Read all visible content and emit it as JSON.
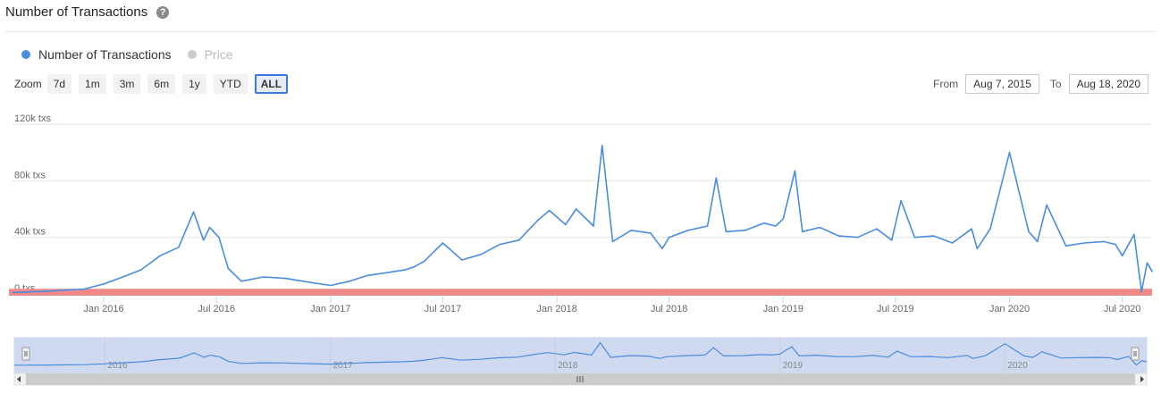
{
  "header": {
    "title": "Number of Transactions",
    "help_icon": "question-circle-icon",
    "help_glyph": "?"
  },
  "legend": [
    {
      "label": "Number of Transactions",
      "color": "#4a8de0",
      "active": true
    },
    {
      "label": "Price",
      "color": "#cccccc",
      "active": false
    }
  ],
  "zoom": {
    "label": "Zoom",
    "buttons": [
      "7d",
      "1m",
      "3m",
      "6m",
      "1y",
      "YTD",
      "ALL"
    ],
    "active": "ALL"
  },
  "range": {
    "from_label": "From",
    "from_value": "Aug 7, 2015",
    "to_label": "To",
    "to_value": "Aug 18, 2020"
  },
  "colors": {
    "line": "#4a8de0",
    "band": "#f08a8a",
    "navigator_mask": "#cfd9f0"
  },
  "chart_data": {
    "type": "line",
    "y_axis": {
      "ticks": [
        "0 txs",
        "40k txs",
        "80k txs",
        "120k txs"
      ],
      "tick_values": [
        0,
        40000,
        80000,
        120000
      ],
      "ylim": [
        0,
        120000
      ]
    },
    "x_axis": {
      "ticks": [
        "Jan 2016",
        "Jul 2016",
        "Jan 2017",
        "Jul 2017",
        "Jan 2018",
        "Jul 2018",
        "Jan 2019",
        "Jul 2019",
        "Jan 2020",
        "Jul 2020"
      ],
      "tick_dates": [
        "2016-01-01",
        "2016-07-01",
        "2017-01-01",
        "2017-07-01",
        "2018-01-01",
        "2018-07-01",
        "2019-01-01",
        "2019-07-01",
        "2020-01-01",
        "2020-07-01"
      ],
      "xlim": [
        "2015-08-07",
        "2020-08-18"
      ]
    },
    "navigator_ticks": [
      "2016",
      "2017",
      "2018",
      "2019",
      "2020"
    ],
    "plot_band": {
      "from": 0,
      "to": 3000
    },
    "series": [
      {
        "name": "Number of Transactions",
        "x": [
          "2015-08-07",
          "2015-10-01",
          "2015-12-01",
          "2016-01-01",
          "2016-02-01",
          "2016-03-01",
          "2016-04-01",
          "2016-05-01",
          "2016-05-25",
          "2016-06-10",
          "2016-06-20",
          "2016-07-05",
          "2016-07-20",
          "2016-08-10",
          "2016-09-15",
          "2016-10-20",
          "2016-12-01",
          "2017-01-01",
          "2017-02-01",
          "2017-03-01",
          "2017-04-01",
          "2017-05-01",
          "2017-05-15",
          "2017-06-01",
          "2017-07-01",
          "2017-08-01",
          "2017-09-01",
          "2017-10-01",
          "2017-11-01",
          "2017-12-01",
          "2017-12-20",
          "2018-01-15",
          "2018-02-01",
          "2018-03-01",
          "2018-03-15",
          "2018-04-01",
          "2018-05-01",
          "2018-06-01",
          "2018-06-20",
          "2018-07-01",
          "2018-08-01",
          "2018-09-01",
          "2018-09-15",
          "2018-10-01",
          "2018-11-01",
          "2018-12-01",
          "2018-12-20",
          "2019-01-01",
          "2019-01-20",
          "2019-02-01",
          "2019-03-01",
          "2019-04-01",
          "2019-05-01",
          "2019-06-01",
          "2019-06-25",
          "2019-07-10",
          "2019-08-01",
          "2019-09-01",
          "2019-10-01",
          "2019-11-01",
          "2019-11-10",
          "2019-12-01",
          "2020-01-01",
          "2020-02-01",
          "2020-02-15",
          "2020-03-01",
          "2020-04-01",
          "2020-05-01",
          "2020-06-01",
          "2020-06-20",
          "2020-07-01",
          "2020-07-20",
          "2020-08-01",
          "2020-08-10",
          "2020-08-18"
        ],
        "values": [
          1000,
          1800,
          3500,
          7000,
          12000,
          17000,
          27000,
          33000,
          58000,
          38000,
          47000,
          40000,
          18000,
          9000,
          12000,
          11000,
          8000,
          6000,
          9000,
          13000,
          15000,
          17000,
          19000,
          23000,
          36000,
          24000,
          28000,
          35000,
          38000,
          52000,
          59000,
          49000,
          60000,
          48000,
          105000,
          37000,
          45000,
          43000,
          32000,
          40000,
          45000,
          48000,
          82000,
          44000,
          45000,
          50000,
          48000,
          53000,
          87000,
          44000,
          47000,
          41000,
          40000,
          46000,
          38000,
          66000,
          40000,
          41000,
          36000,
          46000,
          32000,
          46000,
          100000,
          44000,
          37000,
          63000,
          34000,
          36000,
          37000,
          35000,
          27000,
          42000,
          1500,
          22000,
          16000
        ]
      }
    ]
  }
}
